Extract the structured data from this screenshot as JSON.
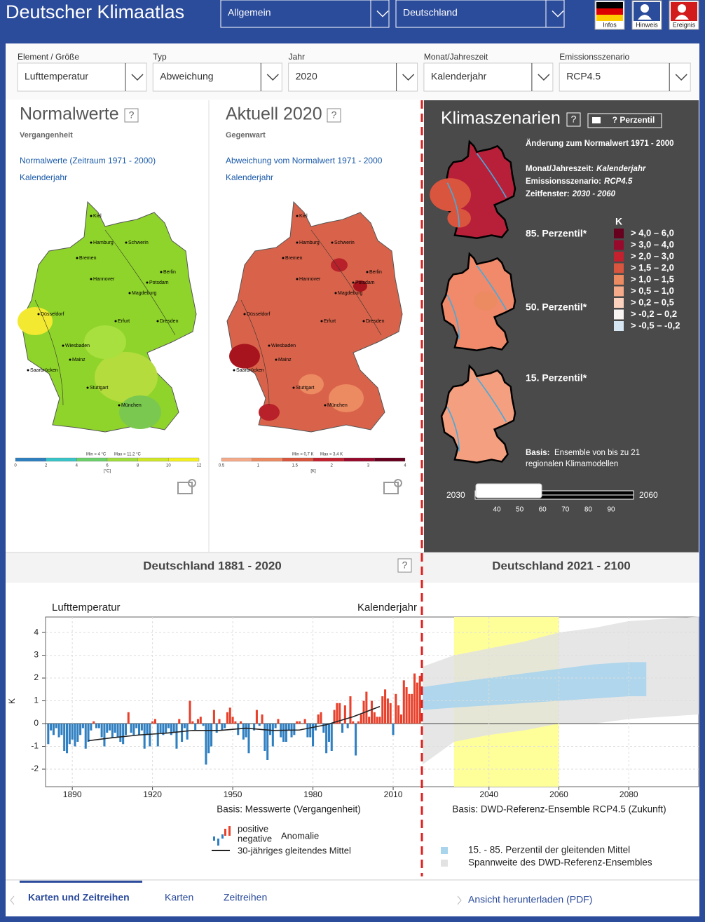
{
  "header": {
    "title": "Deutscher Klimaatlas",
    "selects": [
      "Allgemein",
      "Deutschland"
    ],
    "icons": [
      "Infos",
      "Hinweis",
      "Ereignis"
    ]
  },
  "filters": [
    {
      "label": "Element / Größe",
      "value": "Lufttemperatur"
    },
    {
      "label": "Typ",
      "value": "Abweichung"
    },
    {
      "label": "Jahr",
      "value": "2020"
    },
    {
      "label": "Monat/Jahreszeit",
      "value": "Kalenderjahr"
    },
    {
      "label": "Emissionsszenario",
      "value": "RCP4.5"
    }
  ],
  "help": "?",
  "cities": [
    "Kiel",
    "Hamburg",
    "Schwerin",
    "Bremen",
    "Berlin",
    "Hannover",
    "Potsdam",
    "Magdeburg",
    "Düsseldorf",
    "Erfurt",
    "Dresden",
    "Wiesbaden",
    "Mainz",
    "Saarbrücken",
    "Stuttgart",
    "München"
  ],
  "panel_left": {
    "title": "Normalwerte",
    "subtitle": "Vergangenheit",
    "links": [
      "Normalwerte (Zeitraum 1971 - 2000)",
      "Kalenderjahr"
    ],
    "min": "Min = 4 °C",
    "max": "Max = 11.2 °C",
    "scale": [
      "0",
      "2",
      "4",
      "6",
      "8",
      "10",
      "12"
    ],
    "unit": "[°C]"
  },
  "panel_mid": {
    "title": "Aktuell 2020",
    "subtitle": "Gegenwart",
    "links": [
      "Abweichung vom Normalwert 1971 - 2000",
      "Kalenderjahr"
    ],
    "min": "Min = 0,7 K",
    "max": "Max = 3,4 K",
    "scale": [
      "0.5",
      "1",
      "1.5",
      "2",
      "3",
      "4"
    ],
    "unit": "[K]"
  },
  "panel_right": {
    "title": "Klimaszenarien",
    "button": "? Perzentil",
    "info": "Änderung zum Normalwert 1971 - 2000",
    "details": [
      {
        "label": "Monat/Jahreszeit:",
        "value": "Kalenderjahr"
      },
      {
        "label": "Emissionsszenario:",
        "value": "RCP4.5"
      },
      {
        "label": "Zeitfenster:",
        "value": "2030 - 2060"
      }
    ],
    "percentiles": [
      "85. Perzentil*",
      "50. Perzentil*",
      "15. Perzentil*"
    ],
    "legend_unit": "K",
    "legend": [
      {
        "label": ">  4,0 – 6,0",
        "color": "#67001f"
      },
      {
        "label": ">  3,0 – 4,0",
        "color": "#980a2c"
      },
      {
        "label": ">  2,0 – 3,0",
        "color": "#c4212f"
      },
      {
        "label": ">  1,5 – 2,0",
        "color": "#d9553d"
      },
      {
        "label": ">  1,0 – 1,5",
        "color": "#ec8a61"
      },
      {
        "label": ">  0,5 – 1,0",
        "color": "#f5ab8a"
      },
      {
        "label": ">  0,2 – 0,5",
        "color": "#fbd2bd"
      },
      {
        "label": ">  -0,2 – 0,2",
        "color": "#f7f4f2"
      },
      {
        "label": ">  -0,5 – -0,2",
        "color": "#d6e6f2"
      }
    ],
    "basis_label": "Basis:",
    "basis": [
      "Ensemble von bis zu 21",
      "regionalen Klimamodellen"
    ],
    "slider": {
      "start": "2030",
      "end": "2060",
      "ticks": [
        "40",
        "50",
        "60",
        "70",
        "80",
        "90"
      ]
    }
  },
  "chart_labels": {
    "element": "Lufttemperatur",
    "period": "Kalenderjahr",
    "ylabel": "K",
    "basis_past": "Basis: Messwerte (Vergangenheit)",
    "basis_future": "Basis: DWD-Referenz-Ensemble RCP4.5 (Zukunft)",
    "legend_positive": "positive",
    "legend_negative": "negative",
    "legend_anomaly": "Anomalie"
  },
  "chart_data": [
    {
      "type": "bar",
      "title": "Deutschland 1881 - 2020",
      "x": [
        1881,
        1882,
        1883,
        1884,
        1885,
        1886,
        1887,
        1888,
        1889,
        1890,
        1891,
        1892,
        1893,
        1894,
        1895,
        1896,
        1897,
        1898,
        1899,
        1900,
        1901,
        1902,
        1903,
        1904,
        1905,
        1906,
        1907,
        1908,
        1909,
        1910,
        1911,
        1912,
        1913,
        1914,
        1915,
        1916,
        1917,
        1918,
        1919,
        1920,
        1921,
        1922,
        1923,
        1924,
        1925,
        1926,
        1927,
        1928,
        1929,
        1930,
        1931,
        1932,
        1933,
        1934,
        1935,
        1936,
        1937,
        1938,
        1939,
        1940,
        1941,
        1942,
        1943,
        1944,
        1945,
        1946,
        1947,
        1948,
        1949,
        1950,
        1951,
        1952,
        1953,
        1954,
        1955,
        1956,
        1957,
        1958,
        1959,
        1960,
        1961,
        1962,
        1963,
        1964,
        1965,
        1966,
        1967,
        1968,
        1969,
        1970,
        1971,
        1972,
        1973,
        1974,
        1975,
        1976,
        1977,
        1978,
        1979,
        1980,
        1981,
        1982,
        1983,
        1984,
        1985,
        1986,
        1987,
        1988,
        1989,
        1990,
        1991,
        1992,
        1993,
        1994,
        1995,
        1996,
        1997,
        1998,
        1999,
        2000,
        2001,
        2002,
        2003,
        2004,
        2005,
        2006,
        2007,
        2008,
        2009,
        2010,
        2011,
        2012,
        2013,
        2014,
        2015,
        2016,
        2017,
        2018,
        2019,
        2020
      ],
      "values": [
        -0.9,
        -0.3,
        -0.5,
        -0.2,
        -0.6,
        -0.5,
        -1.2,
        -1.3,
        -0.9,
        -0.7,
        -1.0,
        -0.8,
        -0.5,
        -0.2,
        -1.1,
        -0.8,
        -0.3,
        0.1,
        -0.2,
        -0.2,
        -0.6,
        -1.0,
        -0.4,
        -0.3,
        -0.6,
        -0.4,
        -0.6,
        -0.8,
        -0.9,
        -0.5,
        0.5,
        -0.4,
        -0.5,
        -0.2,
        -0.5,
        -0.3,
        -1.1,
        -0.5,
        -1.0,
        0.1,
        0.2,
        -1.0,
        -0.4,
        -0.5,
        -0.4,
        -0.2,
        -0.5,
        -0.4,
        -1.1,
        0.2,
        -0.8,
        -0.2,
        -0.7,
        1.0,
        0.1,
        -0.3,
        0.2,
        0.3,
        -0.1,
        -1.8,
        -1.3,
        -1.0,
        0.6,
        -0.4,
        0.2,
        -0.3,
        -0.2,
        0.5,
        0.7,
        0.3,
        0.1,
        -0.5,
        0.1,
        -0.7,
        -0.6,
        -1.3,
        0.0,
        -0.3,
        0.6,
        -0.1,
        0.4,
        -1.2,
        -1.6,
        -0.5,
        -1.0,
        -0.2,
        0.2,
        -0.6,
        -0.8,
        -0.8,
        -0.3,
        -0.6,
        -0.5,
        0.1,
        0.1,
        0.0,
        0.2,
        -0.6,
        -0.6,
        -1.0,
        -0.3,
        0.4,
        0.5,
        -0.4,
        -1.3,
        -0.8,
        -1.2,
        0.6,
        0.9,
        0.9,
        -0.4,
        0.8,
        -0.2,
        1.2,
        0.1,
        -1.4,
        0.1,
        0.4,
        1.0,
        1.4,
        0.3,
        1.0,
        0.5,
        0.3,
        0.3,
        1.2,
        1.5,
        1.1,
        0.9,
        -0.5,
        1.3,
        0.8,
        0.4,
        1.9,
        1.6,
        1.3,
        1.3,
        2.2,
        1.8,
        2.1
      ],
      "colors": {
        "positive": "#e8402a",
        "negative": "#2f7fc1"
      },
      "series": [
        {
          "name": "30-jähriges gleitendes Mittel",
          "color": "#222222",
          "x": [
            1896,
            1905,
            1915,
            1925,
            1935,
            1945,
            1955,
            1965,
            1975,
            1985,
            1995,
            2005
          ],
          "values": [
            -0.75,
            -0.62,
            -0.5,
            -0.42,
            -0.3,
            -0.3,
            -0.2,
            -0.3,
            -0.28,
            -0.05,
            0.3,
            0.75
          ]
        }
      ],
      "xlim": [
        1880,
        2021
      ],
      "xticks": [
        1890,
        1920,
        1950,
        1980,
        2010
      ],
      "ylim": [
        -2.77,
        4.68
      ],
      "yticks": [
        -2,
        -1,
        0,
        1,
        2,
        3,
        4
      ],
      "grid": true
    },
    {
      "type": "area",
      "title": "Deutschland 2021 - 2100",
      "series": [
        {
          "name": "15. - 85. Perzentil der gleitenden Mittel",
          "color": "#a8d4ec",
          "x": [
            2021,
            2030,
            2040,
            2050,
            2060,
            2070,
            2080,
            2085
          ],
          "low": [
            0.6,
            0.7,
            0.8,
            0.9,
            1.0,
            1.1,
            1.2,
            1.2
          ],
          "high": [
            1.6,
            1.8,
            2.0,
            2.2,
            2.4,
            2.6,
            2.7,
            2.7
          ]
        },
        {
          "name": "Spannweite des DWD-Referenz-Ensembles",
          "color": "#e2e2e2",
          "x": [
            2021,
            2030,
            2040,
            2050,
            2060,
            2070,
            2080,
            2090,
            2100
          ],
          "low": [
            -1.8,
            -0.8,
            -0.5,
            -0.3,
            0.0,
            0.0,
            0.2,
            0.3,
            0.4
          ],
          "high": [
            2.5,
            3.0,
            3.3,
            3.6,
            4.0,
            4.2,
            4.5,
            4.6,
            4.7
          ]
        }
      ],
      "highlight": [
        2030,
        2060
      ],
      "highlight_color": "#ffff99",
      "xlim": [
        2021,
        2100
      ],
      "xticks": [
        2040,
        2060,
        2080
      ],
      "ylim": [
        -2.77,
        4.68
      ],
      "grid": true
    }
  ],
  "footer": {
    "tabs": [
      "Karten und Zeitreihen",
      "Karten",
      "Zeitreihen"
    ],
    "download": "Ansicht herunterladen (PDF)"
  }
}
